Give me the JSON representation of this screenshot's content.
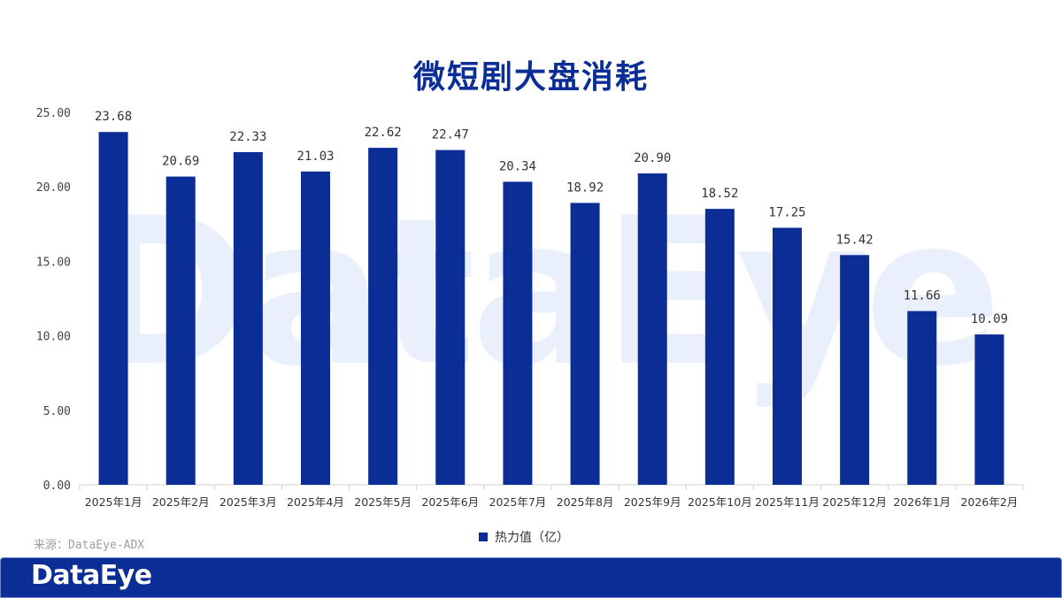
{
  "title": "微短剧大盘消耗",
  "source_note": "来源：DataEye-ADX",
  "footer": {
    "logo_text": "DataEye"
  },
  "watermark": "DataEye",
  "colors": {
    "bar": "#0b2d96",
    "title": "#0b2d96",
    "footer": "#0b2d96"
  },
  "chart_data": {
    "type": "bar",
    "categories": [
      "2025年1月",
      "2025年2月",
      "2025年3月",
      "2025年4月",
      "2025年5月",
      "2025年6月",
      "2025年7月",
      "2025年8月",
      "2025年9月",
      "2025年10月",
      "2025年11月",
      "2025年12月",
      "2026年1月",
      "2026年2月"
    ],
    "series": [
      {
        "name": "热力值（亿）",
        "values": [
          23.68,
          20.69,
          22.33,
          21.03,
          22.62,
          22.47,
          20.34,
          18.92,
          20.9,
          18.52,
          17.25,
          15.42,
          11.66,
          10.09
        ]
      }
    ],
    "value_labels": [
      "23.68",
      "20.69",
      "22.33",
      "21.03",
      "22.62",
      "22.47",
      "20.34",
      "18.92",
      "20.90",
      "18.52",
      "17.25",
      "15.42",
      "11.66",
      "10.09"
    ],
    "y_ticks": [
      "0.00",
      "5.00",
      "10.00",
      "15.00",
      "20.00",
      "25.00"
    ],
    "ylim": [
      0,
      25
    ],
    "grid": false,
    "legend_position": "bottom"
  }
}
